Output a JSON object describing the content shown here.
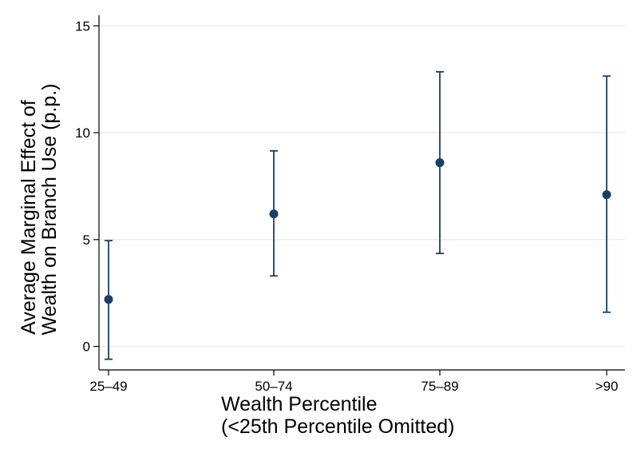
{
  "chart_data": {
    "type": "scatter",
    "subtype": "point-with-error-bars",
    "title": "",
    "xlabel": "Wealth Percentile",
    "xlabel_line2": "(<25th Percentile Omitted)",
    "ylabel": "Average Marginal Effect of",
    "ylabel_line2": "Wealth on Branch Use (p.p.)",
    "categories": [
      "25–49",
      "50–74",
      "75–89",
      ">90"
    ],
    "estimates": [
      2.2,
      6.2,
      8.6,
      7.1
    ],
    "ci_lower": [
      -0.6,
      3.3,
      4.35,
      1.6
    ],
    "ci_upper": [
      4.95,
      9.15,
      12.85,
      12.65
    ],
    "ylim": [
      -1.1,
      15.5
    ],
    "yticks": [
      0,
      5,
      10,
      15
    ],
    "ytick_labels": [
      "0",
      "5",
      "10",
      "15"
    ],
    "grid": true,
    "colors": {
      "marker": "#1a3f66",
      "gridline": "#e8eef3",
      "axis": "#000000"
    }
  }
}
